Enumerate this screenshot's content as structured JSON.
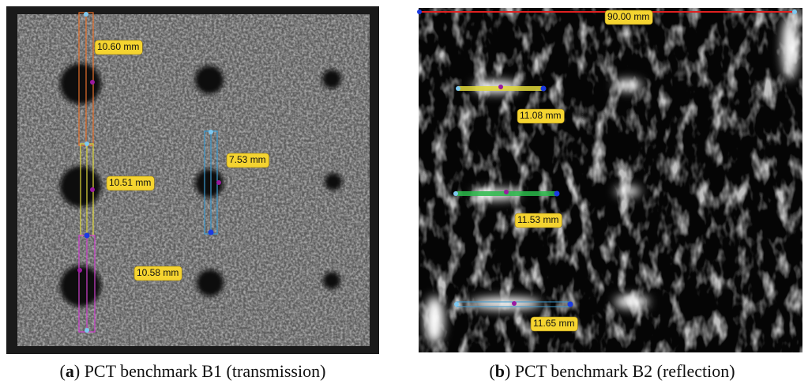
{
  "panels": [
    {
      "caption": [
        "(",
        "a",
        ") PCT benchmark B1 (transmission)"
      ],
      "measurements": [
        "10.60 mm",
        "10.51 mm",
        "10.58 mm",
        "7.53 mm"
      ]
    },
    {
      "caption": [
        "(",
        "b",
        ") PCT benchmark B2 (reflection)"
      ],
      "measurements": [
        "90.00 mm",
        "11.08 mm",
        "11.53 mm",
        "11.65 mm"
      ]
    }
  ]
}
